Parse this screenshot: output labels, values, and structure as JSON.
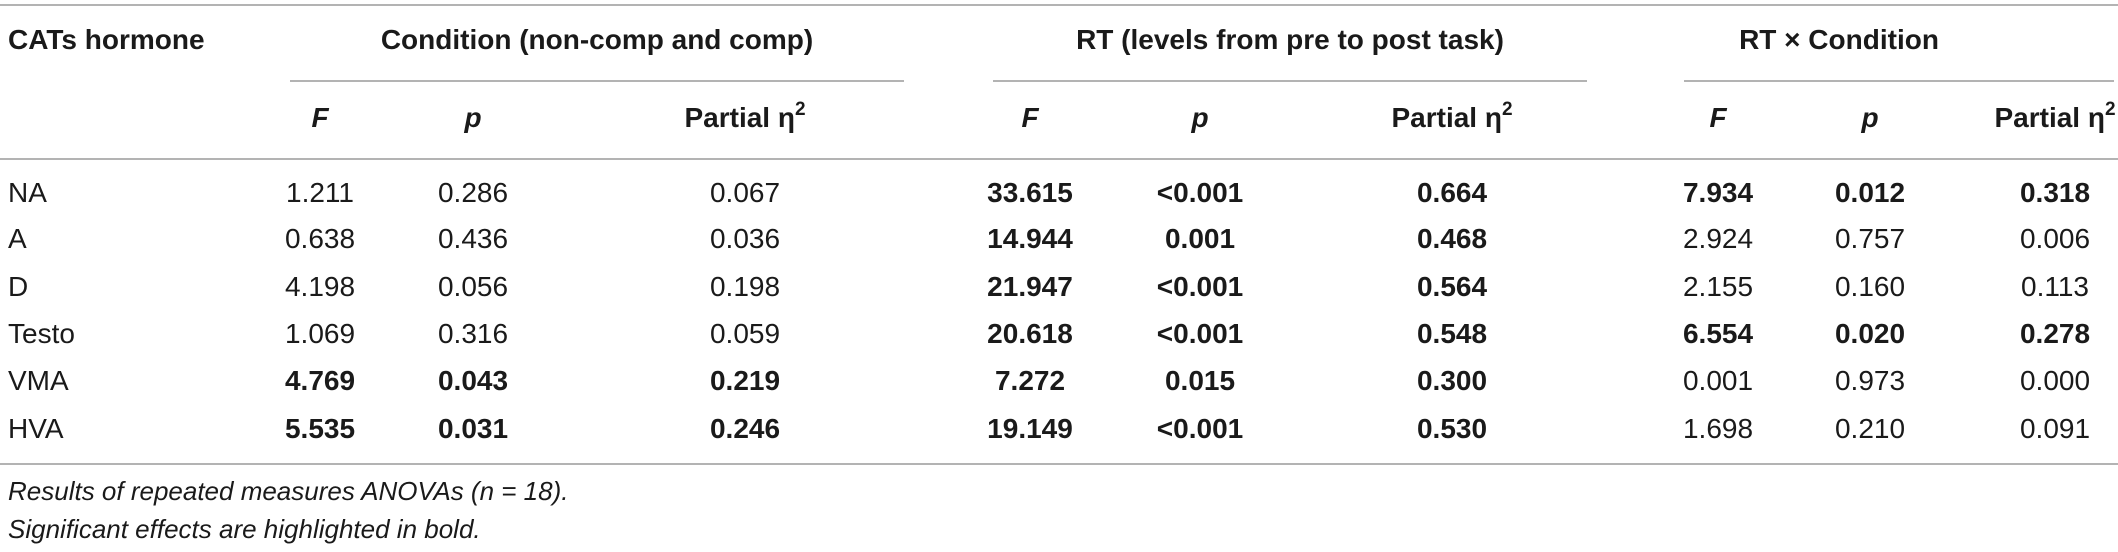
{
  "table": {
    "row_header_label": "CATs hormone",
    "groups": [
      {
        "label": "Condition (non-comp and comp)"
      },
      {
        "label": "RT (levels from pre to post task)"
      },
      {
        "label": "RT × Condition"
      }
    ],
    "subheaders": {
      "f": "F",
      "p": "p",
      "eta_prefix": "Partial η",
      "eta_sup": "2"
    },
    "rows": [
      {
        "name": "NA",
        "cells": [
          {
            "v": "1.211",
            "bold": false
          },
          {
            "v": "0.286",
            "bold": false
          },
          {
            "v": "0.067",
            "bold": false
          },
          {
            "v": "33.615",
            "bold": true
          },
          {
            "v": "<0.001",
            "bold": true
          },
          {
            "v": "0.664",
            "bold": true
          },
          {
            "v": "7.934",
            "bold": true
          },
          {
            "v": "0.012",
            "bold": true
          },
          {
            "v": "0.318",
            "bold": true
          }
        ]
      },
      {
        "name": "A",
        "cells": [
          {
            "v": "0.638",
            "bold": false
          },
          {
            "v": "0.436",
            "bold": false
          },
          {
            "v": "0.036",
            "bold": false
          },
          {
            "v": "14.944",
            "bold": true
          },
          {
            "v": "0.001",
            "bold": true
          },
          {
            "v": "0.468",
            "bold": true
          },
          {
            "v": "2.924",
            "bold": false
          },
          {
            "v": "0.757",
            "bold": false
          },
          {
            "v": "0.006",
            "bold": false
          }
        ]
      },
      {
        "name": "D",
        "cells": [
          {
            "v": "4.198",
            "bold": false
          },
          {
            "v": "0.056",
            "bold": false
          },
          {
            "v": "0.198",
            "bold": false
          },
          {
            "v": "21.947",
            "bold": true
          },
          {
            "v": "<0.001",
            "bold": true
          },
          {
            "v": "0.564",
            "bold": true
          },
          {
            "v": "2.155",
            "bold": false
          },
          {
            "v": "0.160",
            "bold": false
          },
          {
            "v": "0.113",
            "bold": false
          }
        ]
      },
      {
        "name": "Testo",
        "cells": [
          {
            "v": "1.069",
            "bold": false
          },
          {
            "v": "0.316",
            "bold": false
          },
          {
            "v": "0.059",
            "bold": false
          },
          {
            "v": "20.618",
            "bold": true
          },
          {
            "v": "<0.001",
            "bold": true
          },
          {
            "v": "0.548",
            "bold": true
          },
          {
            "v": "6.554",
            "bold": true
          },
          {
            "v": "0.020",
            "bold": true
          },
          {
            "v": "0.278",
            "bold": true
          }
        ]
      },
      {
        "name": "VMA",
        "cells": [
          {
            "v": "4.769",
            "bold": true
          },
          {
            "v": "0.043",
            "bold": true
          },
          {
            "v": "0.219",
            "bold": true
          },
          {
            "v": "7.272",
            "bold": true
          },
          {
            "v": "0.015",
            "bold": true
          },
          {
            "v": "0.300",
            "bold": true
          },
          {
            "v": "0.001",
            "bold": false
          },
          {
            "v": "0.973",
            "bold": false
          },
          {
            "v": "0.000",
            "bold": false
          }
        ]
      },
      {
        "name": "HVA",
        "cells": [
          {
            "v": "5.535",
            "bold": true
          },
          {
            "v": "0.031",
            "bold": true
          },
          {
            "v": "0.246",
            "bold": true
          },
          {
            "v": "19.149",
            "bold": true
          },
          {
            "v": "<0.001",
            "bold": true
          },
          {
            "v": "0.530",
            "bold": true
          },
          {
            "v": "1.698",
            "bold": false
          },
          {
            "v": "0.210",
            "bold": false
          },
          {
            "v": "0.091",
            "bold": false
          }
        ]
      }
    ]
  },
  "footnotes": [
    {
      "text": "Results of repeated measures ANOVAs (n = 18)."
    },
    {
      "text": "Significant effects are highlighted in bold."
    }
  ]
}
